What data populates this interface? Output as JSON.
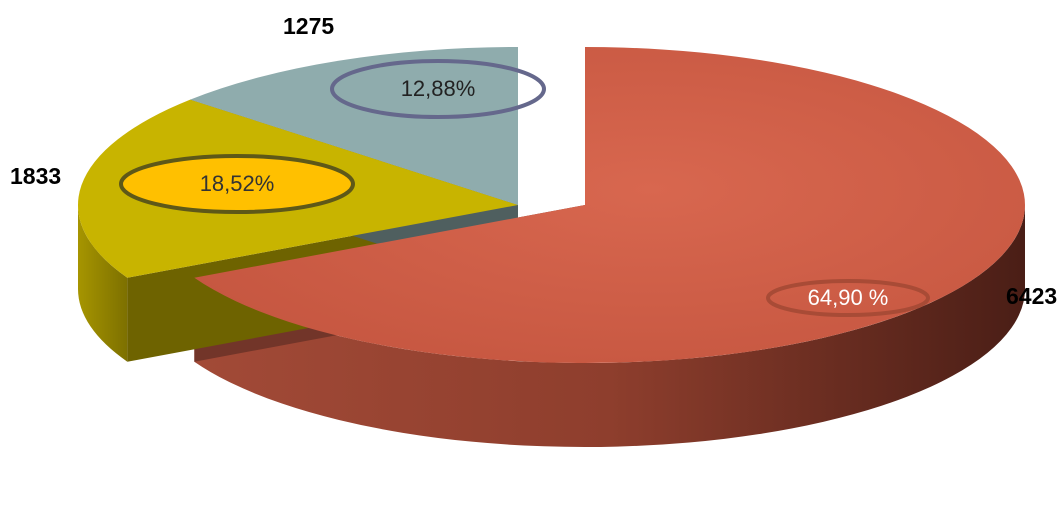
{
  "chart_data": {
    "type": "pie",
    "style": "3d-exploded",
    "slices": [
      {
        "value": 6423,
        "value_label": "6423",
        "percent_label": "64,90 %",
        "color": "#D0604A",
        "badge_stroke": "#A84B36",
        "badge_fill": "none",
        "pct_text_color": "#FFFFFF"
      },
      {
        "value": 1833,
        "value_label": "1833",
        "percent_label": "18,52%",
        "color": "#C8B400",
        "badge_stroke": "#5E5818",
        "badge_fill": "#FFC000",
        "pct_text_color": "#333333"
      },
      {
        "value": 1275,
        "value_label": "1275",
        "percent_label": "12,88%",
        "color": "#8FACAD",
        "badge_stroke": "#65688C",
        "badge_fill": "none",
        "pct_text_color": "#222222"
      }
    ],
    "legend": "none"
  }
}
